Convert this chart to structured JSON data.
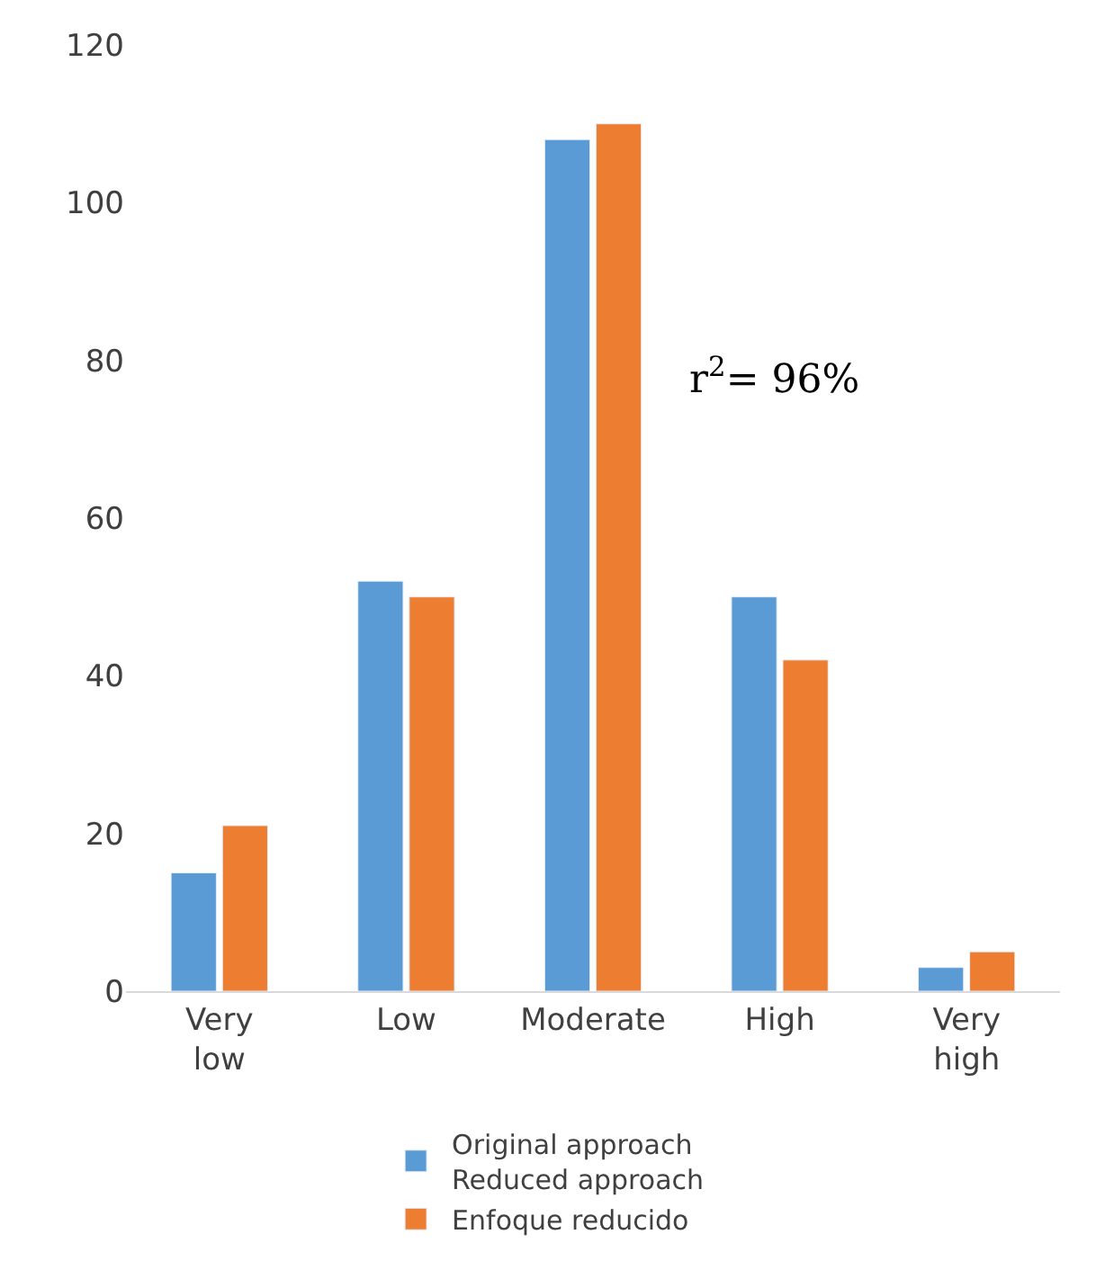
{
  "chart_data": {
    "type": "bar",
    "categories": [
      "Very\nlow",
      "Low",
      "Moderate",
      "High",
      "Very\nhigh"
    ],
    "series": [
      {
        "name": "Original approach\nReduced approach",
        "color": "#5b9bd5",
        "values": [
          15,
          52,
          108,
          50,
          3
        ]
      },
      {
        "name": "Enfoque reducido",
        "color": "#ed7d31",
        "values": [
          21,
          50,
          110,
          42,
          5
        ]
      }
    ],
    "ylim": [
      0,
      120
    ],
    "yticks": [
      0,
      20,
      40,
      60,
      80,
      100,
      120
    ],
    "legend": "bottom",
    "annotations": [
      "r$^{2}$= 96%"
    ]
  }
}
